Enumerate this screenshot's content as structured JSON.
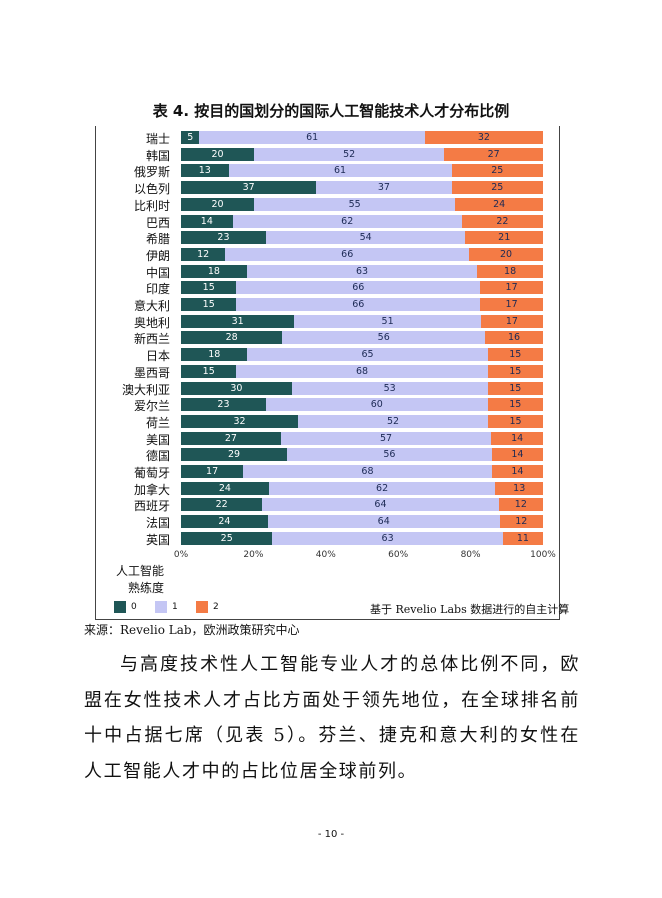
{
  "title": "表 4. 按目的国划分的国际人工智能技术人才分布比例",
  "chart_data": {
    "type": "bar",
    "orientation": "horizontal",
    "stacked": true,
    "normalized": true,
    "categories": [
      "瑞士",
      "韩国",
      "俄罗斯",
      "以色列",
      "比利时",
      "巴西",
      "希腊",
      "伊朗",
      "中国",
      "印度",
      "意大利",
      "奥地利",
      "新西兰",
      "日本",
      "墨西哥",
      "澳大利亚",
      "爱尔兰",
      "荷兰",
      "美国",
      "德国",
      "葡萄牙",
      "加拿大",
      "西班牙",
      "法国",
      "英国"
    ],
    "series": [
      {
        "name": "0",
        "color": "#1f5656",
        "values": [
          5,
          20,
          13,
          37,
          20,
          14,
          23,
          12,
          18,
          15,
          15,
          31,
          28,
          18,
          15,
          30,
          23,
          32,
          27,
          29,
          17,
          24,
          22,
          24,
          25
        ]
      },
      {
        "name": "1",
        "color": "#c4c6f4",
        "values": [
          61,
          52,
          61,
          37,
          55,
          62,
          54,
          66,
          63,
          66,
          66,
          51,
          56,
          65,
          68,
          53,
          60,
          52,
          57,
          56,
          68,
          62,
          64,
          64,
          63
        ]
      },
      {
        "name": "2",
        "color": "#f47b45",
        "values": [
          32,
          27,
          25,
          25,
          24,
          22,
          21,
          20,
          18,
          17,
          17,
          17,
          16,
          15,
          15,
          15,
          15,
          15,
          14,
          14,
          14,
          13,
          12,
          12,
          11
        ]
      }
    ],
    "xticks": [
      "0%",
      "20%",
      "40%",
      "60%",
      "80%",
      "100%"
    ],
    "xlim": [
      0,
      100
    ],
    "legend_title": "人工智能\n熟练度",
    "legend_placement": "bottom-left",
    "note": "基于 Revelio Labs 数据进行的自主计算"
  },
  "source": "来源：Revelio Lab，欧洲政策研究中心",
  "paragraph": "与高度技术性人工智能专业人才的总体比例不同，欧盟在女性技术人才占比方面处于领先地位，在全球排名前十中占据七席（见表 5）。芬兰、捷克和意大利的女性在人工智能人才中的占比位居全球前列。",
  "page_number": "- 10 -"
}
